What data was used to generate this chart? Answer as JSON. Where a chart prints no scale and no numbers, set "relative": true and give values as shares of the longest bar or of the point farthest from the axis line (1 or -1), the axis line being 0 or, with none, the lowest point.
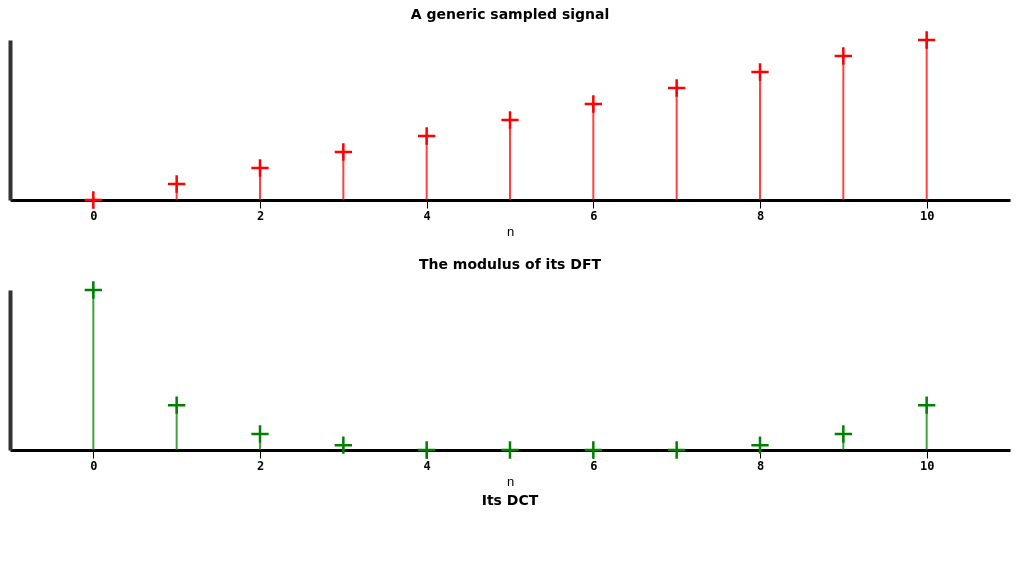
{
  "chart_data": [
    {
      "type": "lollipop",
      "title": "A generic sampled signal",
      "xlabel": "n",
      "relative": true,
      "x": [
        0,
        1,
        2,
        3,
        4,
        5,
        6,
        7,
        8,
        9,
        10
      ],
      "xlim": [
        -1,
        11
      ],
      "xticks": [
        0,
        2,
        4,
        6,
        8,
        10
      ],
      "marker": "cross",
      "series": [
        {
          "color": "#ff0000",
          "values": [
            0,
            0.1,
            0.2,
            0.3,
            0.4,
            0.5,
            0.6,
            0.7,
            0.8,
            0.9,
            1.0
          ]
        }
      ]
    },
    {
      "type": "lollipop",
      "title": "The modulus of its DFT",
      "xlabel": "n",
      "relative": true,
      "x": [
        0,
        1,
        2,
        3,
        4,
        5,
        6,
        7,
        8,
        9,
        10
      ],
      "xlim": [
        -1,
        11
      ],
      "xticks": [
        0,
        2,
        4,
        6,
        8,
        10
      ],
      "marker": "cross",
      "series": [
        {
          "color": "#008000",
          "values": [
            1.0,
            0.28,
            0.1,
            0.03,
            0,
            0,
            0,
            0,
            0.03,
            0.1,
            0.28
          ]
        }
      ],
      "annotations": [
        "Its DCT"
      ]
    }
  ]
}
